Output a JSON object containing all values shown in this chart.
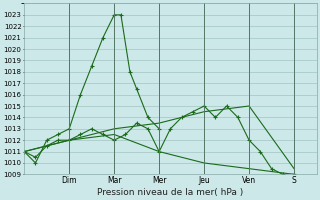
{
  "bg_color": "#cce8e8",
  "grid_color": "#99bbbb",
  "line_color": "#1a6b1a",
  "title": "Pression niveau de la mer( hPa )",
  "ylim": [
    1009,
    1024
  ],
  "yticks": [
    1009,
    1010,
    1011,
    1012,
    1013,
    1014,
    1015,
    1016,
    1017,
    1018,
    1019,
    1020,
    1021,
    1022,
    1023
  ],
  "xlim": [
    0,
    13
  ],
  "day_labels": [
    "Dim",
    "Mar",
    "Mer",
    "Jeu",
    "Ven",
    "S"
  ],
  "day_positions": [
    2.0,
    4.0,
    6.0,
    8.0,
    10.0,
    12.0
  ],
  "line1_x": [
    0.0,
    0.5,
    1.0,
    1.5,
    2.0,
    2.5,
    3.0,
    3.5,
    4.0,
    4.3,
    4.7,
    5.0,
    5.5,
    6.0
  ],
  "line1_y": [
    1011,
    1010,
    1012,
    1012.5,
    1013,
    1016,
    1018.5,
    1021,
    1023,
    1023,
    1018,
    1016.5,
    1014,
    1013
  ],
  "line2_x": [
    0.0,
    0.5,
    1.0,
    1.5,
    2.0,
    2.5,
    3.0,
    3.5,
    4.0,
    4.5,
    5.0,
    5.5,
    6.0,
    6.5,
    7.0,
    7.5,
    8.0,
    8.5,
    9.0,
    9.5,
    10.0,
    10.5,
    11.0,
    11.5,
    12.0
  ],
  "line2_y": [
    1011,
    1010.5,
    1011.5,
    1012,
    1012,
    1012.5,
    1013,
    1012.5,
    1012,
    1012.5,
    1013.5,
    1013,
    1011,
    1013,
    1014,
    1014.5,
    1015,
    1014,
    1015,
    1014,
    1012,
    1011,
    1009.5,
    1009,
    1009
  ],
  "line3_x": [
    0.0,
    2.0,
    4.0,
    6.0,
    8.0,
    10.0,
    12.0
  ],
  "line3_y": [
    1011,
    1012,
    1013,
    1013.5,
    1014.5,
    1015,
    1009.5
  ],
  "line4_x": [
    0.0,
    2.0,
    4.0,
    6.0,
    8.0,
    10.0,
    12.0
  ],
  "line4_y": [
    1011,
    1012,
    1012.5,
    1011,
    1010,
    1009.5,
    1009
  ]
}
